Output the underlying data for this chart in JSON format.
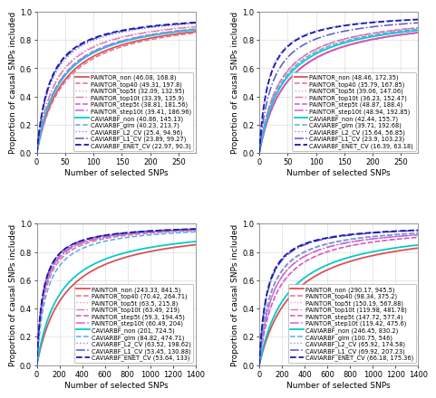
{
  "panels": [
    {
      "xlim": [
        0,
        280
      ],
      "ylim": [
        0,
        1.0
      ],
      "xticks": [
        0,
        50,
        100,
        150,
        200,
        250
      ],
      "yticks": [
        0.0,
        0.2,
        0.4,
        0.6,
        0.8,
        1.0
      ],
      "xlabel": "Number of selected SNPs",
      "ylabel": "Proportion of causal SNPs included",
      "legend_loc": "lower right",
      "curves": [
        {
          "label": "PAINTOR_non (46.08, 168.8)",
          "color": "#e05050",
          "lw": 1.3,
          "ls": "solid",
          "half": 46.08
        },
        {
          "label": "PAINTOR_top40 (49.31, 197.8)",
          "color": "#e07090",
          "lw": 1.1,
          "ls": "dashed",
          "half": 49.31
        },
        {
          "label": "PAINTOR_top5t (32.09, 132.95)",
          "color": "#e8a0b8",
          "lw": 1.0,
          "ls": "dotted",
          "half": 32.09
        },
        {
          "label": "PAINTOR_top10t (33.39, 135.9)",
          "color": "#d878b0",
          "lw": 1.0,
          "ls": "dashdot",
          "half": 33.39
        },
        {
          "label": "PAINTOR_step5t (38.81, 181.56)",
          "color": "#cc55cc",
          "lw": 1.1,
          "ls": "dashed",
          "half": 38.81
        },
        {
          "label": "PAINTOR_step10t (39.41, 186.96)",
          "color": "#d060d0",
          "lw": 1.1,
          "ls": "dashdot",
          "half": 39.41
        },
        {
          "label": "CAVIARBF_non (40.86, 145.13)",
          "color": "#00cccc",
          "lw": 1.3,
          "ls": "solid",
          "half": 40.86
        },
        {
          "label": "CAVIARBF_glm (40.23, 213.7)",
          "color": "#55aaee",
          "lw": 1.1,
          "ls": "dashed",
          "half": 40.23
        },
        {
          "label": "CAVIARBF_L2_CV (25.4, 94.96)",
          "color": "#8888ee",
          "lw": 1.0,
          "ls": "dotted",
          "half": 25.4
        },
        {
          "label": "CAVIARBF_L1_CV (23.89, 99.27)",
          "color": "#5555cc",
          "lw": 1.1,
          "ls": "dashdot",
          "half": 23.89
        },
        {
          "label": "CAVIARBF_ENET_CV (22.97, 90.3)",
          "color": "#1a1aaa",
          "lw": 1.3,
          "ls": "dashed",
          "half": 22.97
        }
      ]
    },
    {
      "xlim": [
        0,
        280
      ],
      "ylim": [
        0,
        1.0
      ],
      "xticks": [
        0,
        50,
        100,
        150,
        200,
        250
      ],
      "yticks": [
        0.0,
        0.2,
        0.4,
        0.6,
        0.8,
        1.0
      ],
      "xlabel": "Number of selected SNPs",
      "ylabel": "Proportion of causal SNPs included",
      "legend_loc": "lower right",
      "curves": [
        {
          "label": "PAINTOR_non (48.46, 172.35)",
          "color": "#e05050",
          "lw": 1.3,
          "ls": "solid",
          "half": 48.46
        },
        {
          "label": "PAINTOR_top40 (35.79, 167.85)",
          "color": "#e07090",
          "lw": 1.1,
          "ls": "dashed",
          "half": 35.79
        },
        {
          "label": "PAINTOR_top5t (39.06, 147.06)",
          "color": "#e8a0b8",
          "lw": 1.0,
          "ls": "dotted",
          "half": 39.06
        },
        {
          "label": "PAINTOR_top10t (36.23, 152.47)",
          "color": "#d878b0",
          "lw": 1.0,
          "ls": "dashdot",
          "half": 36.23
        },
        {
          "label": "PAINTOR_step5t (48.87, 188.4)",
          "color": "#cc55cc",
          "lw": 1.1,
          "ls": "dashed",
          "half": 48.87
        },
        {
          "label": "PAINTOR_step10t (48.94, 192.85)",
          "color": "#d060d0",
          "lw": 1.1,
          "ls": "dashdot",
          "half": 48.94
        },
        {
          "label": "CAVIARBF_non (42.44, 155.7)",
          "color": "#00cccc",
          "lw": 1.3,
          "ls": "solid",
          "half": 42.44
        },
        {
          "label": "CAVIARBF_glm (39.71, 192.68)",
          "color": "#55aaee",
          "lw": 1.1,
          "ls": "dashed",
          "half": 39.71
        },
        {
          "label": "CAVIARBF_L2_CV (15.64, 56.85)",
          "color": "#8888ee",
          "lw": 1.0,
          "ls": "dotted",
          "half": 15.64
        },
        {
          "label": "CAVIARBF_L1_CV (23.9, 103.23)",
          "color": "#5555cc",
          "lw": 1.1,
          "ls": "dashdot",
          "half": 23.9
        },
        {
          "label": "CAVIARBF_ENET_CV (16.39, 63.18)",
          "color": "#1a1aaa",
          "lw": 1.3,
          "ls": "dashed",
          "half": 16.39
        }
      ]
    },
    {
      "xlim": [
        0,
        1400
      ],
      "ylim": [
        0,
        1.0
      ],
      "xticks": [
        0,
        200,
        400,
        600,
        800,
        1000,
        1200,
        1400
      ],
      "yticks": [
        0.0,
        0.2,
        0.4,
        0.6,
        0.8,
        1.0
      ],
      "xlabel": "Number of selected SNPs",
      "ylabel": "Proportion of causal SNPs included",
      "legend_loc": "lower right",
      "curves": [
        {
          "label": "PAINTOR_non (243.33, 841.5)",
          "color": "#e05050",
          "lw": 1.3,
          "ls": "solid",
          "half": 243.33
        },
        {
          "label": "PAINTOR_top40 (70.42, 264.71)",
          "color": "#e07090",
          "lw": 1.1,
          "ls": "dashed",
          "half": 70.42
        },
        {
          "label": "PAINTOR_top5t (63.5, 215.8)",
          "color": "#e8a0b8",
          "lw": 1.0,
          "ls": "dotted",
          "half": 63.5
        },
        {
          "label": "PAINTOR_top10t (63.49, 219)",
          "color": "#d878b0",
          "lw": 1.0,
          "ls": "dashdot",
          "half": 63.49
        },
        {
          "label": "PAINTOR_step5t (59.3, 194.45)",
          "color": "#cc55cc",
          "lw": 1.1,
          "ls": "dashed",
          "half": 59.3
        },
        {
          "label": "PAINTOR_step10t (60.49, 204)",
          "color": "#d060d0",
          "lw": 1.1,
          "ls": "dashdot",
          "half": 60.49
        },
        {
          "label": "CAVIARBF_non (201, 724.5)",
          "color": "#00cccc",
          "lw": 1.3,
          "ls": "solid",
          "half": 201.0
        },
        {
          "label": "CAVIARBF_glm (84.82, 474.71)",
          "color": "#55aaee",
          "lw": 1.1,
          "ls": "dashed",
          "half": 84.82
        },
        {
          "label": "CAVIARBF_L2_CV (63.52, 198.62)",
          "color": "#8888ee",
          "lw": 1.0,
          "ls": "dotted",
          "half": 63.52
        },
        {
          "label": "CAVIARBF_L1_CV (53.45, 130.88)",
          "color": "#5555cc",
          "lw": 1.1,
          "ls": "dashdot",
          "half": 53.45
        },
        {
          "label": "CAVIARBF_ENET_CV (53.64, 133)",
          "color": "#1a1aaa",
          "lw": 1.3,
          "ls": "dashed",
          "half": 53.64
        }
      ]
    },
    {
      "xlim": [
        0,
        1400
      ],
      "ylim": [
        0,
        1.0
      ],
      "xticks": [
        0,
        200,
        400,
        600,
        800,
        1000,
        1200,
        1400
      ],
      "yticks": [
        0.0,
        0.2,
        0.4,
        0.6,
        0.8,
        1.0
      ],
      "xlabel": "Number of selected SNPs",
      "ylabel": "Proportion of causal SNPs included",
      "legend_loc": "lower right",
      "curves": [
        {
          "label": "PAINTOR_non (290.17, 945.5)",
          "color": "#e05050",
          "lw": 1.3,
          "ls": "solid",
          "half": 290.17
        },
        {
          "label": "PAINTOR_top40 (98.34, 375.2)",
          "color": "#e07090",
          "lw": 1.1,
          "ls": "dashed",
          "half": 98.34
        },
        {
          "label": "PAINTOR_top5t (150.19, 567.88)",
          "color": "#e8a0b8",
          "lw": 1.0,
          "ls": "dotted",
          "half": 150.19
        },
        {
          "label": "PAINTOR_top10t (119.98, 481.78)",
          "color": "#d878b0",
          "lw": 1.0,
          "ls": "dashdot",
          "half": 119.98
        },
        {
          "label": "PAINTOR_step5t (147.72, 577.4)",
          "color": "#cc55cc",
          "lw": 1.1,
          "ls": "dashed",
          "half": 147.72
        },
        {
          "label": "PAINTOR_step10t (119.42, 475.6)",
          "color": "#d060d0",
          "lw": 1.1,
          "ls": "dashdot",
          "half": 119.42
        },
        {
          "label": "CAVIARBF_non (246.45, 830.2)",
          "color": "#00cccc",
          "lw": 1.3,
          "ls": "solid",
          "half": 246.45
        },
        {
          "label": "CAVIARBF_glm (100.75, 546)",
          "color": "#55aaee",
          "lw": 1.1,
          "ls": "dashed",
          "half": 100.75
        },
        {
          "label": "CAVIARBF_L2_CV (65.92, 174.58)",
          "color": "#8888ee",
          "lw": 1.0,
          "ls": "dotted",
          "half": 65.92
        },
        {
          "label": "CAVIARBF_L1_CV (69.92, 207.23)",
          "color": "#5555cc",
          "lw": 1.1,
          "ls": "dashdot",
          "half": 69.92
        },
        {
          "label": "CAVIARBF_ENET_CV (66.18, 175.36)",
          "color": "#1a1aaa",
          "lw": 1.3,
          "ls": "dashed",
          "half": 66.18
        }
      ]
    }
  ],
  "bg_color": "#ffffff",
  "plot_bg": "#ffffff",
  "legend_fontsize": 4.8,
  "tick_fontsize": 6.0,
  "label_fontsize": 6.5,
  "grid_color": "#dddddd",
  "grid_lw": 0.5,
  "spine_color": "#888888"
}
